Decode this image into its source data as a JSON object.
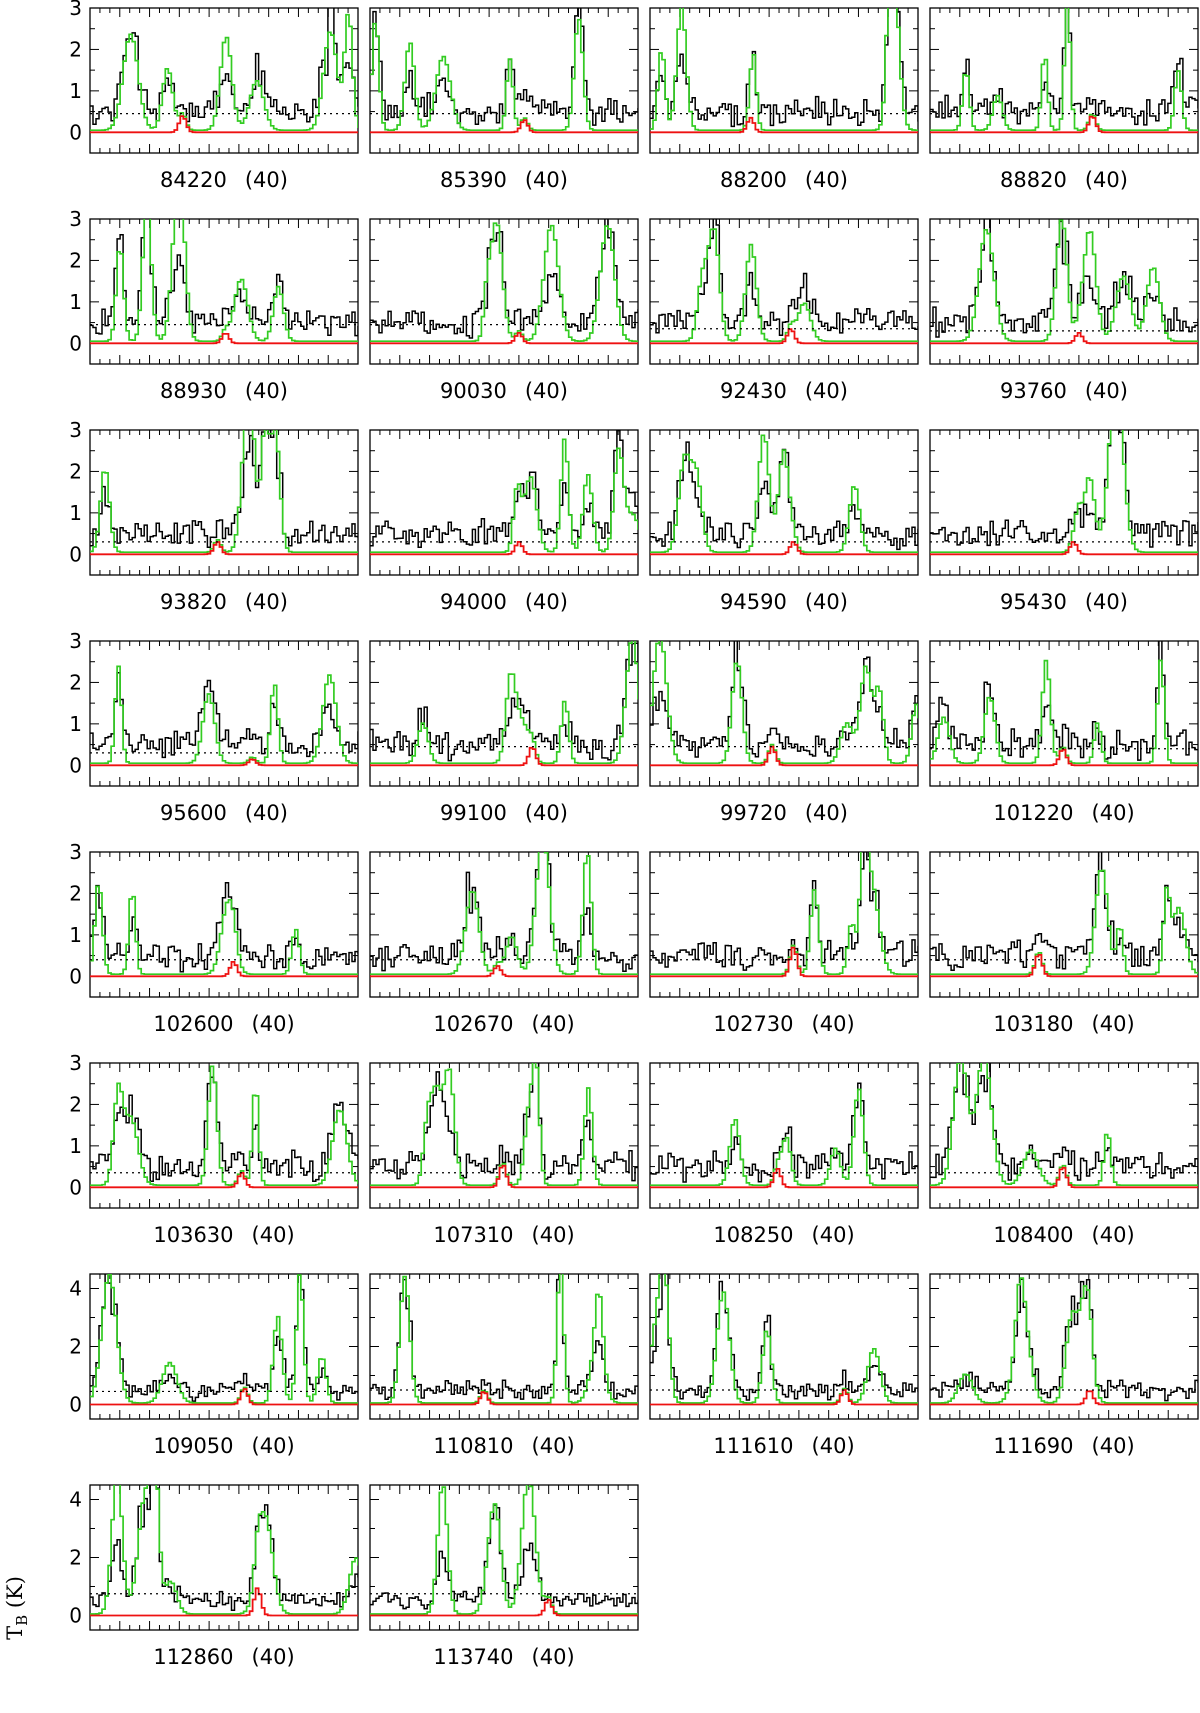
{
  "figure": {
    "ylabel": "T",
    "ylabel_subscript": "B",
    "ylabel_unit": " (K)"
  },
  "colors": {
    "observed": "#000000",
    "synthetic_model": "#33cc22",
    "species_model": "#ee1111",
    "threshold": "#000000"
  },
  "chart_data": {
    "type": "line",
    "panel_grid": "8 rows x 4 columns (30 panels)",
    "series_legend": [
      "observed spectrum (black)",
      "full synthetic model (green)",
      "single-species model (red)",
      "noise level (dotted)"
    ],
    "rows": [
      {
        "ylim": [
          -0.5,
          3
        ],
        "yticks": [
          0,
          1,
          2,
          3
        ],
        "panels": [
          {
            "freq": "84220",
            "tag": "(40)",
            "thr": 0.45,
            "peak": 0.4,
            "peak_pos": 0.34
          },
          {
            "freq": "85390",
            "tag": "(40)",
            "thr": 0.45,
            "peak": 0.3,
            "peak_pos": 0.57
          },
          {
            "freq": "88200",
            "tag": "(40)",
            "thr": 0.45,
            "peak": 0.35,
            "peak_pos": 0.37
          },
          {
            "freq": "88820",
            "tag": "(40)",
            "thr": 0.45,
            "peak": 0.4,
            "peak_pos": 0.6
          }
        ]
      },
      {
        "ylim": [
          -0.5,
          3
        ],
        "yticks": [
          0,
          1,
          2,
          3
        ],
        "panels": [
          {
            "freq": "88930",
            "tag": "(40)",
            "thr": 0.45,
            "peak": 0.25,
            "peak_pos": 0.5
          },
          {
            "freq": "90030",
            "tag": "(40)",
            "thr": 0.45,
            "peak": 0.25,
            "peak_pos": 0.55
          },
          {
            "freq": "92430",
            "tag": "(40)",
            "thr": 0.35,
            "peak": 0.35,
            "peak_pos": 0.52
          },
          {
            "freq": "93760",
            "tag": "(40)",
            "thr": 0.3,
            "peak": 0.25,
            "peak_pos": 0.55
          }
        ]
      },
      {
        "ylim": [
          -0.5,
          3
        ],
        "yticks": [
          0,
          1,
          2,
          3
        ],
        "panels": [
          {
            "freq": "93820",
            "tag": "(40)",
            "thr": 0.3,
            "peak": 0.3,
            "peak_pos": 0.47
          },
          {
            "freq": "94000",
            "tag": "(40)",
            "thr": 0.3,
            "peak": 0.3,
            "peak_pos": 0.55
          },
          {
            "freq": "94590",
            "tag": "(40)",
            "thr": 0.3,
            "peak": 0.3,
            "peak_pos": 0.53
          },
          {
            "freq": "95430",
            "tag": "(40)",
            "thr": 0.3,
            "peak": 0.3,
            "peak_pos": 0.53
          }
        ]
      },
      {
        "ylim": [
          -0.5,
          3
        ],
        "yticks": [
          0,
          1,
          2,
          3
        ],
        "panels": [
          {
            "freq": "95600",
            "tag": "(40)",
            "thr": 0.3,
            "peak": 0.15,
            "peak_pos": 0.6
          },
          {
            "freq": "99100",
            "tag": "(40)",
            "thr": 0.45,
            "peak": 0.45,
            "peak_pos": 0.6
          },
          {
            "freq": "99720",
            "tag": "(40)",
            "thr": 0.45,
            "peak": 0.45,
            "peak_pos": 0.45
          },
          {
            "freq": "101220",
            "tag": "(40)",
            "thr": 0.4,
            "peak": 0.4,
            "peak_pos": 0.49
          }
        ]
      },
      {
        "ylim": [
          -0.5,
          3
        ],
        "yticks": [
          0,
          1,
          2,
          3
        ],
        "panels": [
          {
            "freq": "102600",
            "tag": "(40)",
            "thr": 0.4,
            "peak": 0.35,
            "peak_pos": 0.53
          },
          {
            "freq": "102670",
            "tag": "(40)",
            "thr": 0.4,
            "peak": 0.25,
            "peak_pos": 0.47
          },
          {
            "freq": "102730",
            "tag": "(40)",
            "thr": 0.4,
            "peak": 0.7,
            "peak_pos": 0.53
          },
          {
            "freq": "103180",
            "tag": "(40)",
            "thr": 0.4,
            "peak": 0.55,
            "peak_pos": 0.4
          }
        ]
      },
      {
        "ylim": [
          -0.5,
          3
        ],
        "yticks": [
          0,
          1,
          2,
          3
        ],
        "panels": [
          {
            "freq": "103630",
            "tag": "(40)",
            "thr": 0.35,
            "peak": 0.35,
            "peak_pos": 0.56
          },
          {
            "freq": "107310",
            "tag": "(40)",
            "thr": 0.35,
            "peak": 0.55,
            "peak_pos": 0.49
          },
          {
            "freq": "108250",
            "tag": "(40)",
            "thr": 0.35,
            "peak": 0.45,
            "peak_pos": 0.47
          },
          {
            "freq": "108400",
            "tag": "(40)",
            "thr": 0.35,
            "peak": 0.5,
            "peak_pos": 0.49
          }
        ]
      },
      {
        "ylim": [
          -0.5,
          4.5
        ],
        "yticks": [
          0,
          2,
          4
        ],
        "panels": [
          {
            "freq": "109050",
            "tag": "(40)",
            "thr": 0.45,
            "peak": 0.55,
            "peak_pos": 0.57
          },
          {
            "freq": "110810",
            "tag": "(40)",
            "thr": 0.5,
            "peak": 0.45,
            "peak_pos": 0.42
          },
          {
            "freq": "111610",
            "tag": "(40)",
            "thr": 0.5,
            "peak": 0.5,
            "peak_pos": 0.72
          },
          {
            "freq": "111690",
            "tag": "(40)",
            "thr": 0.5,
            "peak": 0.5,
            "peak_pos": 0.59
          }
        ]
      },
      {
        "ylim": [
          -0.5,
          4.5
        ],
        "yticks": [
          0,
          2,
          4
        ],
        "panels": [
          {
            "freq": "112860",
            "tag": "(40)",
            "thr": 0.75,
            "peak": 0.95,
            "peak_pos": 0.62
          },
          {
            "freq": "113740",
            "tag": "(40)",
            "thr": 0.75,
            "peak": 0.55,
            "peak_pos": 0.66
          }
        ]
      }
    ]
  }
}
